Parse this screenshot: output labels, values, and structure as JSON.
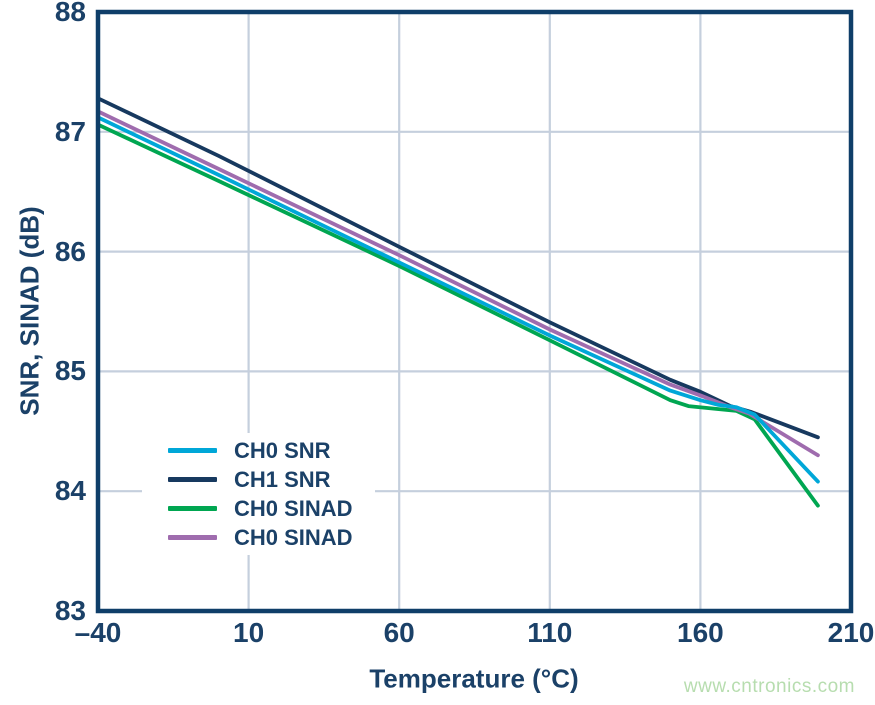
{
  "figure": {
    "watermark": "www.cntronics.com"
  },
  "chart_data": {
    "type": "line",
    "title": "",
    "xlabel": "Temperature (°C)",
    "ylabel": "SNR, SINAD (dB)",
    "xlim": [
      -40,
      210
    ],
    "ylim": [
      83,
      88
    ],
    "x_ticks": [
      -40,
      10,
      60,
      110,
      160,
      210
    ],
    "x_tick_labels": [
      "–40",
      "10",
      "60",
      "110",
      "160",
      "210"
    ],
    "y_ticks": [
      83,
      84,
      85,
      86,
      87,
      88
    ],
    "y_tick_labels": [
      "83",
      "84",
      "85",
      "86",
      "87",
      "88"
    ],
    "grid": true,
    "legend_position": "inside-lower-left",
    "colors": {
      "axis": "#0F3E69",
      "text": "#1B4168",
      "grid": "#C5CFDD",
      "watermark": "#B7DDAF"
    },
    "draw_order": [
      2,
      1,
      3,
      0
    ],
    "series": [
      {
        "name": "CH0 SNR",
        "color": "#00A7D8",
        "points": [
          [
            -40,
            87.12
          ],
          [
            0,
            86.64
          ],
          [
            60,
            85.91
          ],
          [
            110,
            85.3
          ],
          [
            150,
            84.84
          ],
          [
            160,
            84.76
          ],
          [
            166,
            84.72
          ],
          [
            172,
            84.7
          ],
          [
            178,
            84.64
          ],
          [
            199,
            84.08
          ]
        ]
      },
      {
        "name": "CH1 SNR",
        "color": "#17395F",
        "points": [
          [
            -40,
            87.28
          ],
          [
            0,
            86.8
          ],
          [
            60,
            86.04
          ],
          [
            110,
            85.41
          ],
          [
            150,
            84.93
          ],
          [
            160,
            84.83
          ],
          [
            170,
            84.71
          ],
          [
            177,
            84.66
          ],
          [
            199,
            84.45
          ]
        ]
      },
      {
        "name": "CH0 SINAD",
        "color": "#00A651",
        "points": [
          [
            -40,
            87.06
          ],
          [
            0,
            86.59
          ],
          [
            60,
            85.88
          ],
          [
            110,
            85.26
          ],
          [
            150,
            84.76
          ],
          [
            156,
            84.71
          ],
          [
            164,
            84.69
          ],
          [
            172,
            84.67
          ],
          [
            178,
            84.6
          ],
          [
            199,
            83.88
          ]
        ]
      },
      {
        "name": "CH0 SINAD",
        "color": "#9F6CAE",
        "points": [
          [
            -40,
            87.17
          ],
          [
            0,
            86.69
          ],
          [
            60,
            85.97
          ],
          [
            110,
            85.35
          ],
          [
            150,
            84.89
          ],
          [
            160,
            84.8
          ],
          [
            170,
            84.7
          ],
          [
            176,
            84.65
          ],
          [
            199,
            84.3
          ]
        ]
      }
    ]
  }
}
